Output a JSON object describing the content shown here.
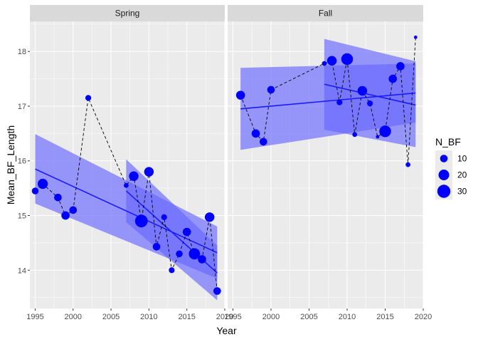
{
  "chart_data": {
    "type": "scatter",
    "xlabel": "Year",
    "ylabel": "Mean_BF_Length",
    "xlim": [
      1994.3,
      2020.0
    ],
    "ylim": [
      13.3,
      18.55
    ],
    "x_ticks": [
      1995,
      2000,
      2005,
      2010,
      2015,
      2020
    ],
    "y_ticks": [
      14,
      15,
      16,
      17,
      18
    ],
    "grid": true,
    "colors": {
      "point": "#0000ff",
      "ribbon": "#6a6aff",
      "line": "#1a1aff",
      "panel_bg": "#ebebeb",
      "strip_bg": "#d9d9d9",
      "grid": "#ffffff"
    },
    "size_legend": {
      "title": "N_BF",
      "placement": "right",
      "entries": [
        {
          "label": "10",
          "value": 10
        },
        {
          "label": "20",
          "value": 20
        },
        {
          "label": "30",
          "value": 30
        }
      ]
    },
    "panels": [
      {
        "label": "Spring",
        "points": [
          {
            "x": 1995,
            "y": 15.45,
            "n": 8
          },
          {
            "x": 1996,
            "y": 15.58,
            "n": 18
          },
          {
            "x": 1998,
            "y": 15.33,
            "n": 10
          },
          {
            "x": 1999,
            "y": 15.0,
            "n": 12
          },
          {
            "x": 2000,
            "y": 15.1,
            "n": 10
          },
          {
            "x": 2002,
            "y": 17.15,
            "n": 6
          },
          {
            "x": 2007,
            "y": 15.55,
            "n": 4
          },
          {
            "x": 2008,
            "y": 15.72,
            "n": 16
          },
          {
            "x": 2009,
            "y": 14.9,
            "n": 28
          },
          {
            "x": 2010,
            "y": 15.8,
            "n": 16
          },
          {
            "x": 2011,
            "y": 14.43,
            "n": 10
          },
          {
            "x": 2012,
            "y": 14.97,
            "n": 6
          },
          {
            "x": 2013,
            "y": 14.0,
            "n": 6
          },
          {
            "x": 2014,
            "y": 14.3,
            "n": 8
          },
          {
            "x": 2015,
            "y": 14.7,
            "n": 12
          },
          {
            "x": 2016,
            "y": 14.3,
            "n": 22
          },
          {
            "x": 2017,
            "y": 14.2,
            "n": 12
          },
          {
            "x": 2018,
            "y": 14.97,
            "n": 16
          },
          {
            "x": 2019,
            "y": 13.62,
            "n": 10
          }
        ],
        "fits": [
          {
            "x0": 1995,
            "x1": 2019,
            "y0": 15.85,
            "y1": 14.32,
            "lo0": 15.22,
            "lo1": 13.85,
            "hi0": 16.49,
            "hi1": 14.8
          },
          {
            "x0": 2007,
            "x1": 2019,
            "y0": 15.45,
            "y1": 13.95,
            "lo0": 14.88,
            "lo1": 13.45,
            "hi0": 16.03,
            "hi1": 14.45
          }
        ]
      },
      {
        "label": "Fall",
        "points": [
          {
            "x": 1996,
            "y": 17.2,
            "n": 14
          },
          {
            "x": 1998,
            "y": 16.5,
            "n": 12
          },
          {
            "x": 1999,
            "y": 16.35,
            "n": 10
          },
          {
            "x": 2000,
            "y": 17.3,
            "n": 10
          },
          {
            "x": 2007,
            "y": 17.78,
            "n": 4
          },
          {
            "x": 2008,
            "y": 17.83,
            "n": 16
          },
          {
            "x": 2009,
            "y": 17.07,
            "n": 6
          },
          {
            "x": 2010,
            "y": 17.86,
            "n": 24
          },
          {
            "x": 2011,
            "y": 16.48,
            "n": 4
          },
          {
            "x": 2012,
            "y": 17.28,
            "n": 16
          },
          {
            "x": 2013,
            "y": 17.05,
            "n": 6
          },
          {
            "x": 2014,
            "y": 16.44,
            "n": 2
          },
          {
            "x": 2015,
            "y": 16.54,
            "n": 24
          },
          {
            "x": 2016,
            "y": 17.5,
            "n": 12
          },
          {
            "x": 2017,
            "y": 17.73,
            "n": 12
          },
          {
            "x": 2018,
            "y": 15.93,
            "n": 4
          },
          {
            "x": 2019,
            "y": 18.26,
            "n": 2
          }
        ],
        "fits": [
          {
            "x0": 1996,
            "x1": 2019,
            "y0": 16.95,
            "y1": 17.24,
            "lo0": 16.2,
            "lo1": 16.7,
            "hi0": 17.7,
            "hi1": 17.78
          },
          {
            "x0": 2007,
            "x1": 2019,
            "y0": 17.4,
            "y1": 17.02,
            "lo0": 16.57,
            "lo1": 16.25,
            "hi0": 18.23,
            "hi1": 17.82
          }
        ]
      }
    ]
  }
}
